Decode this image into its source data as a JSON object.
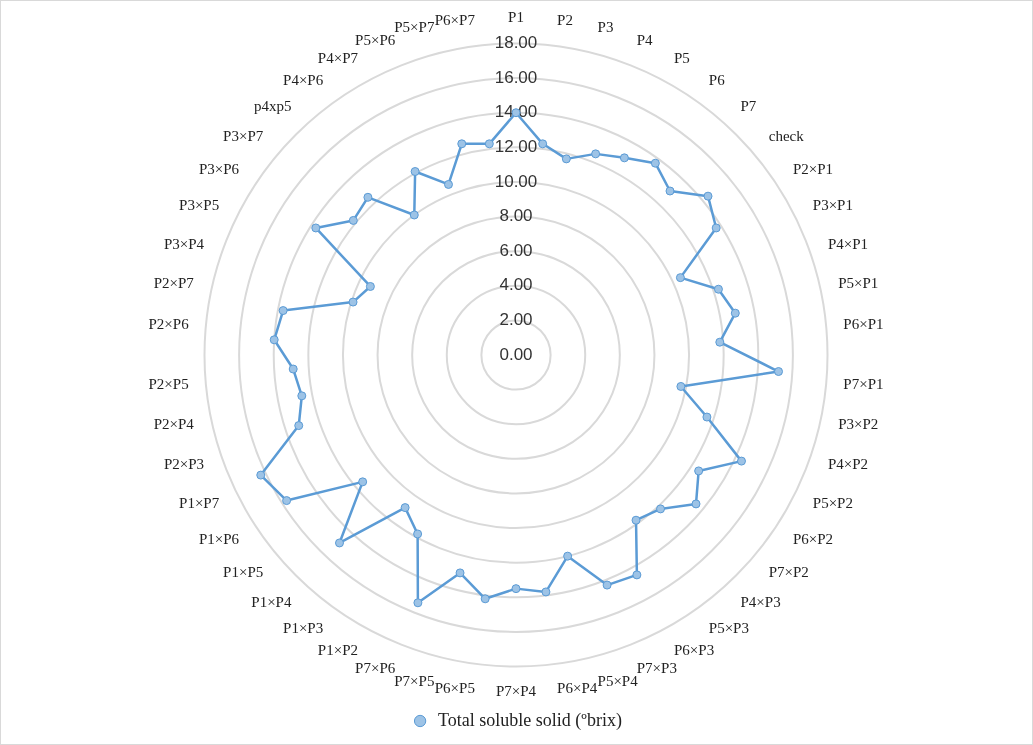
{
  "chart_data": {
    "type": "radar",
    "categories": [
      "P1",
      "P2",
      "P3",
      "P4",
      "P5",
      "P6",
      "P7",
      "check",
      "P2×P1",
      "P3×P1",
      "P4×P1",
      "P5×P1",
      "P6×P1",
      "P7×P1",
      "P3×P2",
      "P4×P2",
      "P5×P2",
      "P6×P2",
      "P7×P2",
      "P4×P3",
      "P5×P3",
      "P6×P3",
      "P7×P3",
      "P5×P4",
      "P6×P4",
      "P7×P4",
      "P6×P5",
      "P7×P5",
      "P7×P6",
      "P1×P2",
      "P1×P3",
      "P1×P4",
      "P1×P5",
      "P1×P6",
      "P1×P7",
      "P2×P3",
      "P2×P4",
      "P2×P5",
      "P2×P6",
      "P2×P7",
      "P3×P4",
      "P3×P5",
      "P3×P6",
      "P3×P7",
      "p4xp5",
      "P4×P6",
      "P4×P7",
      "P5×P6",
      "P5×P7",
      "P6×P7"
    ],
    "series": [
      {
        "name": "Total soluble solid (ºbrix)",
        "color": "#5b9bd5",
        "values": [
          14.0,
          12.3,
          11.7,
          12.5,
          13.0,
          13.7,
          13.0,
          14.4,
          13.7,
          10.5,
          12.3,
          12.9,
          11.8,
          15.2,
          9.7,
          11.6,
          14.4,
          12.5,
          13.5,
          12.2,
          11.8,
          14.5,
          14.3,
          12.0,
          13.8,
          13.5,
          14.2,
          13.0,
          15.4,
          11.8,
          10.9,
          14.9,
          11.5,
          15.7,
          16.3,
          13.2,
          12.6,
          12.9,
          14.0,
          13.7,
          9.9,
          9.3,
          13.7,
          12.2,
          12.5,
          10.0,
          12.1,
          10.6,
          12.6,
          12.3
        ]
      }
    ],
    "ylim": [
      0,
      18
    ],
    "yticks": [
      {
        "value": 0,
        "label": "0.00"
      },
      {
        "value": 2,
        "label": "2.00"
      },
      {
        "value": 4,
        "label": "4.00"
      },
      {
        "value": 6,
        "label": "6.00"
      },
      {
        "value": 8,
        "label": "8.00"
      },
      {
        "value": 10,
        "label": "10.00"
      },
      {
        "value": 12,
        "label": "12.00"
      },
      {
        "value": 14,
        "label": "14.00"
      },
      {
        "value": 16,
        "label": "16.00"
      },
      {
        "value": 18,
        "label": "18.00"
      }
    ],
    "grid": true,
    "legend": "bottom",
    "marker": "circle",
    "line_style": "solid"
  }
}
